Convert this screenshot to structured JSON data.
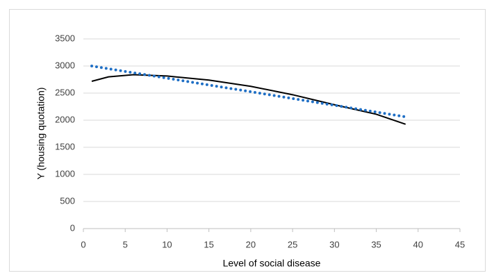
{
  "chart_data": {
    "type": "line",
    "x_label": "Level of social disease",
    "y_label": "Y (housing quotation)",
    "x": [
      1,
      3,
      6,
      10,
      15,
      20,
      25,
      30,
      35,
      38.5
    ],
    "series": [
      {
        "color": "#000000",
        "style": "solid",
        "values": [
          2718,
          2800,
          2840,
          2815,
          2740,
          2625,
          2470,
          2285,
          2110,
          1925
        ]
      },
      {
        "color": "#1f6fc5",
        "style": "dotted",
        "values": [
          3000,
          2950,
          2875,
          2775,
          2650,
          2525,
          2400,
          2275,
          2150,
          2062
        ]
      }
    ],
    "xlim": [
      0,
      45
    ],
    "xticks": [
      0,
      5,
      10,
      15,
      20,
      25,
      30,
      35,
      40,
      45
    ],
    "ylim": [
      0,
      3500
    ],
    "yticks": [
      0,
      500,
      1000,
      1500,
      2000,
      2500,
      3000,
      3500
    ],
    "grid": true
  }
}
